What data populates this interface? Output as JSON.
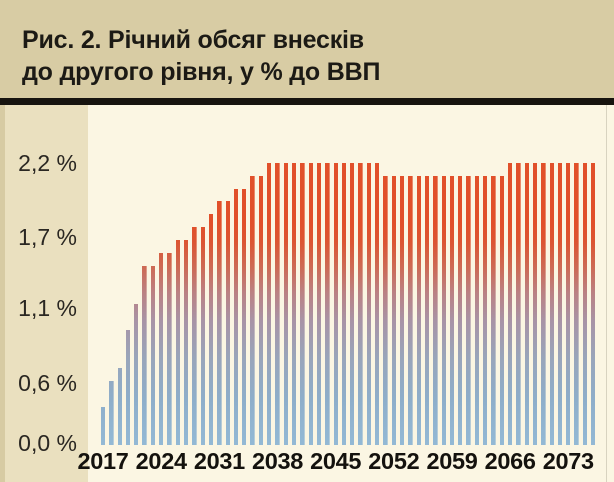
{
  "figure_title": {
    "line1": "Рис. 2. Річний обсяг внесків",
    "line2": "до другого рівня, у % до ВВП"
  },
  "chart_data": {
    "type": "bar",
    "title": "Рис. 2. Річний обсяг внесків до другого рівня, у % до ВВП",
    "xlabel": "",
    "ylabel": "",
    "unit": "% до ВВП",
    "grid": false,
    "legend": false,
    "ylim": [
      0,
      2.35
    ],
    "x": [
      2017,
      2018,
      2019,
      2020,
      2021,
      2022,
      2023,
      2024,
      2025,
      2026,
      2027,
      2028,
      2029,
      2030,
      2031,
      2032,
      2033,
      2034,
      2035,
      2036,
      2037,
      2038,
      2039,
      2040,
      2041,
      2042,
      2043,
      2044,
      2045,
      2046,
      2047,
      2048,
      2049,
      2050,
      2051,
      2052,
      2053,
      2054,
      2055,
      2056,
      2057,
      2058,
      2059,
      2060,
      2061,
      2062,
      2063,
      2064,
      2065,
      2066,
      2067,
      2068,
      2069,
      2070,
      2071,
      2072,
      2073,
      2074,
      2075,
      2076
    ],
    "values": [
      0.3,
      0.5,
      0.6,
      0.9,
      1.1,
      1.4,
      1.4,
      1.5,
      1.5,
      1.6,
      1.6,
      1.7,
      1.7,
      1.8,
      1.9,
      1.9,
      2.0,
      2.0,
      2.1,
      2.1,
      2.2,
      2.2,
      2.2,
      2.2,
      2.2,
      2.2,
      2.2,
      2.2,
      2.2,
      2.2,
      2.2,
      2.2,
      2.2,
      2.2,
      2.1,
      2.1,
      2.1,
      2.1,
      2.1,
      2.1,
      2.1,
      2.1,
      2.1,
      2.1,
      2.1,
      2.1,
      2.1,
      2.1,
      2.1,
      2.2,
      2.2,
      2.2,
      2.2,
      2.2,
      2.2,
      2.2,
      2.2,
      2.2,
      2.2,
      2.2
    ],
    "x_tick_labels": [
      "2017",
      "2024",
      "2031",
      "2038",
      "2045",
      "2052",
      "2059",
      "2066",
      "2073"
    ],
    "x_tick_years": [
      2017,
      2024,
      2031,
      2038,
      2045,
      2052,
      2059,
      2066,
      2073
    ],
    "y_tick_labels": [
      "0,0 %",
      "0,6 %",
      "1,1 %",
      "1,7 %",
      "2,2 %"
    ],
    "y_tick_values": [
      0,
      0.55,
      1.1,
      1.65,
      2.2
    ]
  },
  "colors": {
    "title_bg": "#d8cca4",
    "panel_bg": "#eae0bf",
    "panel_edge": "#d7cba3",
    "plot_bg": "#fbf6e3",
    "rule": "#17140f",
    "text": "#1c1a15",
    "bar_bottom_blue": "#93b9d5",
    "bar_top_red": "#e1502a"
  },
  "gradient_stops": [
    [
      "#93b9d5",
      "0%"
    ],
    [
      "#8eaeca",
      "16%"
    ],
    [
      "#99a5ba",
      "31%"
    ],
    [
      "#a893a6",
      "44%"
    ],
    [
      "#bb8183",
      "54%"
    ],
    [
      "#cd6a55",
      "63%"
    ],
    [
      "#dc5532",
      "72%"
    ],
    [
      "#e1502a",
      "79%"
    ],
    [
      "#e1502a",
      "100%"
    ]
  ]
}
